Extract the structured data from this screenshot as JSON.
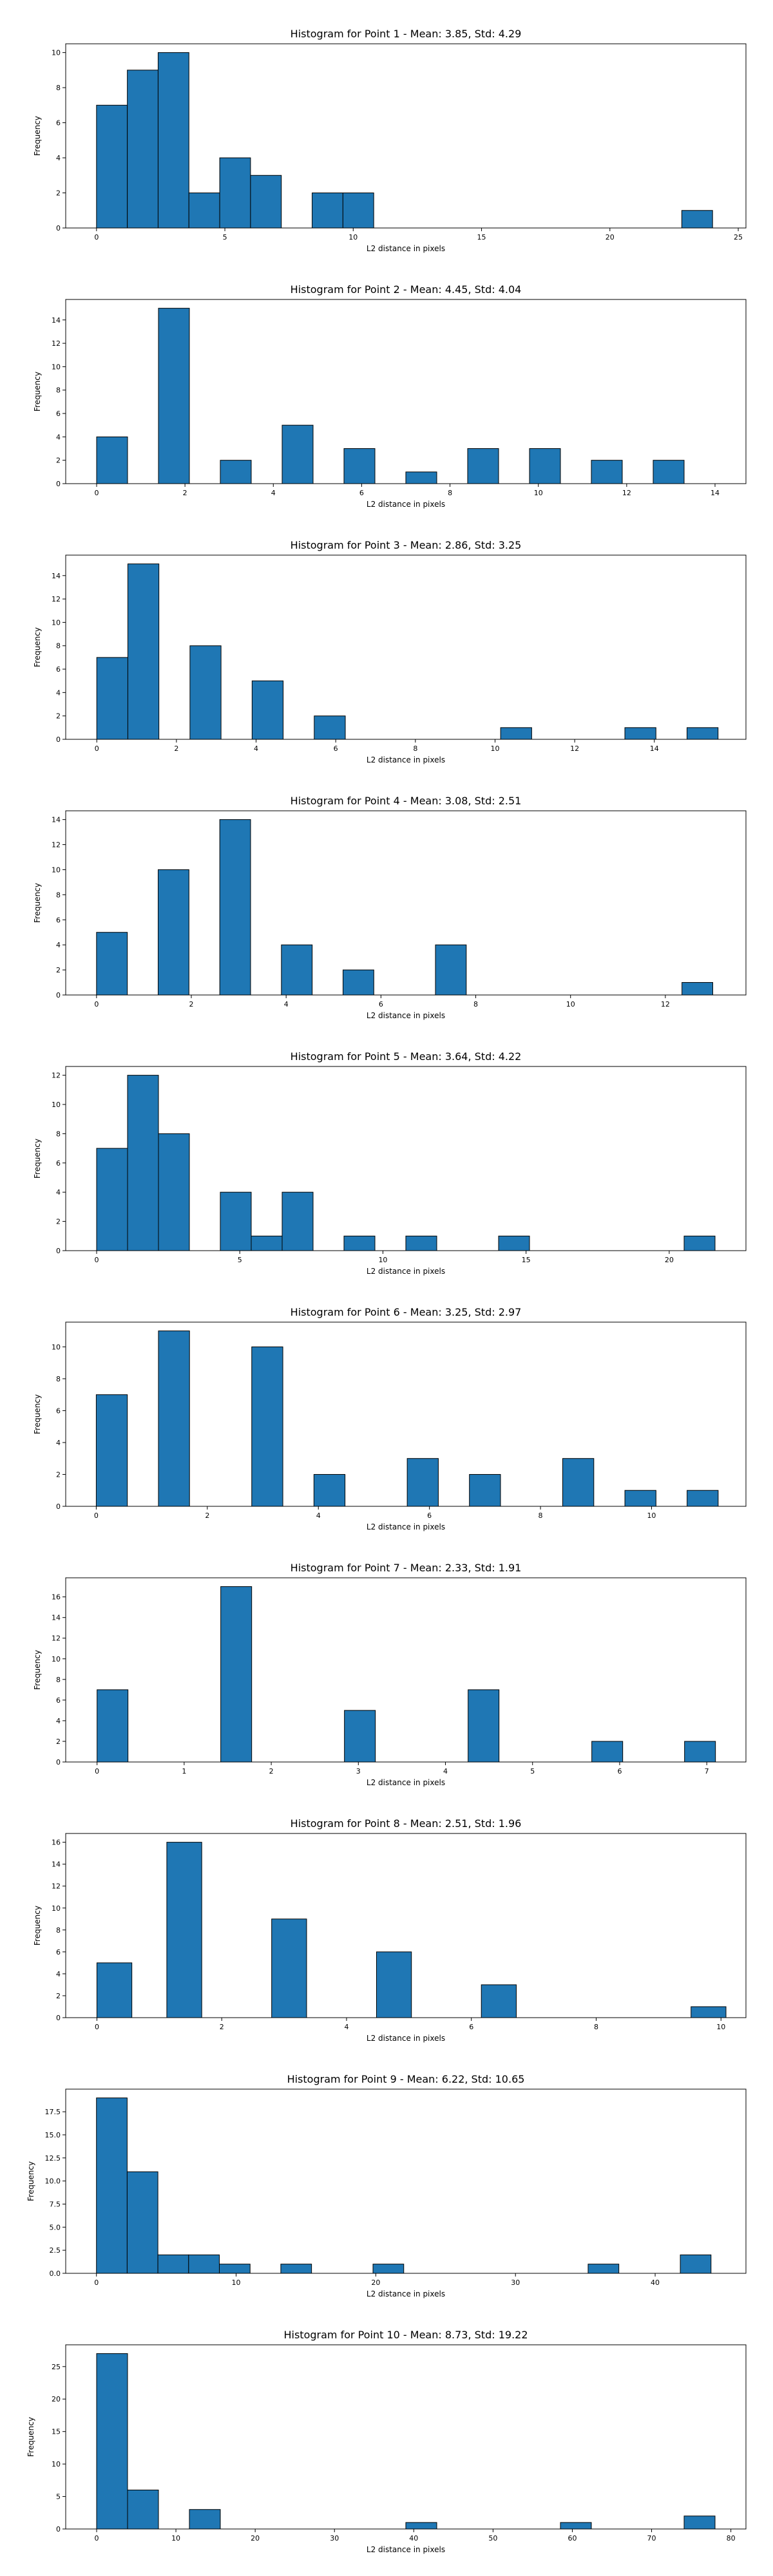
{
  "chart_data": [
    {
      "type": "bar",
      "title": "Histogram for Point 1 - Mean: 3.85, Std: 4.29",
      "xlabel": "L2 distance in pixels",
      "ylabel": "Frequency",
      "xlim": [
        -1.2,
        25.3
      ],
      "ylim": [
        0,
        10.5
      ],
      "xticks": [
        0,
        5,
        10,
        15,
        20,
        25
      ],
      "yticks": [
        0,
        2,
        4,
        6,
        8,
        10
      ],
      "bins": [
        {
          "x0": 0.0,
          "x1": 1.2,
          "value": 7
        },
        {
          "x0": 1.2,
          "x1": 2.4,
          "value": 9
        },
        {
          "x0": 2.4,
          "x1": 3.6,
          "value": 10
        },
        {
          "x0": 3.6,
          "x1": 4.8,
          "value": 2
        },
        {
          "x0": 4.8,
          "x1": 6.0,
          "value": 4
        },
        {
          "x0": 6.0,
          "x1": 7.2,
          "value": 3
        },
        {
          "x0": 8.4,
          "x1": 9.6,
          "value": 2
        },
        {
          "x0": 9.6,
          "x1": 10.8,
          "value": 2
        },
        {
          "x0": 22.8,
          "x1": 24.0,
          "value": 1
        }
      ]
    },
    {
      "type": "bar",
      "title": "Histogram for Point 2 - Mean: 4.45, Std: 4.04",
      "xlabel": "L2 distance in pixels",
      "ylabel": "Frequency",
      "xlim": [
        -0.7,
        14.7
      ],
      "ylim": [
        0,
        15.75
      ],
      "xticks": [
        0,
        2,
        4,
        6,
        8,
        10,
        12,
        14
      ],
      "yticks": [
        0,
        2,
        4,
        6,
        8,
        10,
        12,
        14
      ],
      "bins": [
        {
          "x0": 0.0,
          "x1": 0.7,
          "value": 4
        },
        {
          "x0": 1.4,
          "x1": 2.1,
          "value": 15
        },
        {
          "x0": 2.8,
          "x1": 3.5,
          "value": 2
        },
        {
          "x0": 4.2,
          "x1": 4.9,
          "value": 5
        },
        {
          "x0": 5.6,
          "x1": 6.3,
          "value": 3
        },
        {
          "x0": 7.0,
          "x1": 7.7,
          "value": 1
        },
        {
          "x0": 8.4,
          "x1": 9.1,
          "value": 3
        },
        {
          "x0": 9.8,
          "x1": 10.5,
          "value": 3
        },
        {
          "x0": 11.2,
          "x1": 11.9,
          "value": 2
        },
        {
          "x0": 12.6,
          "x1": 13.3,
          "value": 2
        }
      ]
    },
    {
      "type": "bar",
      "title": "Histogram for Point 3 - Mean: 2.86, Std: 3.25",
      "xlabel": "L2 distance in pixels",
      "ylabel": "Frequency",
      "xlim": [
        -0.78,
        16.3
      ],
      "ylim": [
        0,
        15.75
      ],
      "xticks": [
        0,
        2,
        4,
        6,
        8,
        10,
        12,
        14
      ],
      "yticks": [
        0,
        2,
        4,
        6,
        8,
        10,
        12,
        14
      ],
      "bins": [
        {
          "x0": 0.0,
          "x1": 0.78,
          "value": 7
        },
        {
          "x0": 0.78,
          "x1": 1.56,
          "value": 15
        },
        {
          "x0": 2.34,
          "x1": 3.12,
          "value": 8
        },
        {
          "x0": 3.9,
          "x1": 4.68,
          "value": 5
        },
        {
          "x0": 5.46,
          "x1": 6.24,
          "value": 2
        },
        {
          "x0": 10.14,
          "x1": 10.92,
          "value": 1
        },
        {
          "x0": 13.26,
          "x1": 14.04,
          "value": 1
        },
        {
          "x0": 14.82,
          "x1": 15.6,
          "value": 1
        }
      ]
    },
    {
      "type": "bar",
      "title": "Histogram for Point 4 - Mean: 3.08, Std: 2.51",
      "xlabel": "L2 distance in pixels",
      "ylabel": "Frequency",
      "xlim": [
        -0.65,
        13.7
      ],
      "ylim": [
        0,
        14.7
      ],
      "xticks": [
        0,
        2,
        4,
        6,
        8,
        10,
        12
      ],
      "yticks": [
        0,
        2,
        4,
        6,
        8,
        10,
        12,
        14
      ],
      "bins": [
        {
          "x0": 0.0,
          "x1": 0.65,
          "value": 5
        },
        {
          "x0": 1.3,
          "x1": 1.95,
          "value": 10
        },
        {
          "x0": 2.6,
          "x1": 3.25,
          "value": 14
        },
        {
          "x0": 3.9,
          "x1": 4.55,
          "value": 4
        },
        {
          "x0": 5.2,
          "x1": 5.85,
          "value": 2
        },
        {
          "x0": 7.15,
          "x1": 7.8,
          "value": 4
        },
        {
          "x0": 12.35,
          "x1": 13.0,
          "value": 1
        }
      ]
    },
    {
      "type": "bar",
      "title": "Histogram for Point 5 - Mean: 3.64, Std: 4.22",
      "xlabel": "L2 distance in pixels",
      "ylabel": "Frequency",
      "xlim": [
        -1.08,
        22.68
      ],
      "ylim": [
        0,
        12.6
      ],
      "xticks": [
        0,
        5,
        10,
        15,
        20
      ],
      "yticks": [
        0,
        2,
        4,
        6,
        8,
        10,
        12
      ],
      "bins": [
        {
          "x0": 0.0,
          "x1": 1.08,
          "value": 7
        },
        {
          "x0": 1.08,
          "x1": 2.16,
          "value": 12
        },
        {
          "x0": 2.16,
          "x1": 3.24,
          "value": 8
        },
        {
          "x0": 4.32,
          "x1": 5.4,
          "value": 4
        },
        {
          "x0": 5.4,
          "x1": 6.48,
          "value": 1
        },
        {
          "x0": 6.48,
          "x1": 7.56,
          "value": 4
        },
        {
          "x0": 8.64,
          "x1": 9.72,
          "value": 1
        },
        {
          "x0": 10.8,
          "x1": 11.88,
          "value": 1
        },
        {
          "x0": 14.04,
          "x1": 15.12,
          "value": 1
        },
        {
          "x0": 20.52,
          "x1": 21.6,
          "value": 1
        }
      ]
    },
    {
      "type": "bar",
      "title": "Histogram for Point 6 - Mean: 3.25, Std: 2.97",
      "xlabel": "L2 distance in pixels",
      "ylabel": "Frequency",
      "xlim": [
        -0.55,
        11.7
      ],
      "ylim": [
        0,
        11.55
      ],
      "xticks": [
        0,
        2,
        4,
        6,
        8,
        10
      ],
      "yticks": [
        0,
        2,
        4,
        6,
        8,
        10
      ],
      "bins": [
        {
          "x0": 0.0,
          "x1": 0.56,
          "value": 7
        },
        {
          "x0": 1.12,
          "x1": 1.68,
          "value": 11
        },
        {
          "x0": 2.8,
          "x1": 3.36,
          "value": 10
        },
        {
          "x0": 3.92,
          "x1": 4.48,
          "value": 2
        },
        {
          "x0": 5.6,
          "x1": 6.16,
          "value": 3
        },
        {
          "x0": 6.72,
          "x1": 7.28,
          "value": 2
        },
        {
          "x0": 8.4,
          "x1": 8.96,
          "value": 3
        },
        {
          "x0": 9.52,
          "x1": 10.08,
          "value": 1
        },
        {
          "x0": 10.64,
          "x1": 11.2,
          "value": 1
        }
      ]
    },
    {
      "type": "bar",
      "title": "Histogram for Point 7 - Mean: 2.33, Std: 1.91",
      "xlabel": "L2 distance in pixels",
      "ylabel": "Frequency",
      "xlim": [
        -0.36,
        7.45
      ],
      "ylim": [
        0,
        17.85
      ],
      "xticks": [
        0,
        1,
        2,
        3,
        4,
        5,
        6,
        7
      ],
      "yticks": [
        0,
        2,
        4,
        6,
        8,
        10,
        12,
        14,
        16
      ],
      "bins": [
        {
          "x0": 0.0,
          "x1": 0.355,
          "value": 7
        },
        {
          "x0": 1.42,
          "x1": 1.775,
          "value": 17
        },
        {
          "x0": 2.84,
          "x1": 3.195,
          "value": 5
        },
        {
          "x0": 4.26,
          "x1": 4.615,
          "value": 7
        },
        {
          "x0": 5.68,
          "x1": 6.035,
          "value": 2
        },
        {
          "x0": 6.745,
          "x1": 7.1,
          "value": 2
        }
      ]
    },
    {
      "type": "bar",
      "title": "Histogram for Point 8 - Mean: 2.51, Std: 1.96",
      "xlabel": "L2 distance in pixels",
      "ylabel": "Frequency",
      "xlim": [
        -0.5,
        10.4
      ],
      "ylim": [
        0,
        16.8
      ],
      "xticks": [
        0,
        2,
        4,
        6,
        8,
        10
      ],
      "yticks": [
        0,
        2,
        4,
        6,
        8,
        10,
        12,
        14,
        16
      ],
      "bins": [
        {
          "x0": 0.0,
          "x1": 0.56,
          "value": 5
        },
        {
          "x0": 1.12,
          "x1": 1.68,
          "value": 16
        },
        {
          "x0": 2.8,
          "x1": 3.36,
          "value": 9
        },
        {
          "x0": 4.48,
          "x1": 5.04,
          "value": 6
        },
        {
          "x0": 6.16,
          "x1": 6.72,
          "value": 3
        },
        {
          "x0": 9.52,
          "x1": 10.08,
          "value": 1
        }
      ]
    },
    {
      "type": "bar",
      "title": "Histogram for Point 9 - Mean: 6.22, Std: 10.65",
      "xlabel": "L2 distance in pixels",
      "ylabel": "Frequency",
      "xlim": [
        -2.2,
        46.5
      ],
      "ylim": [
        0,
        19.95
      ],
      "xticks": [
        0,
        10,
        20,
        30,
        40
      ],
      "yticks": [
        0.0,
        2.5,
        5.0,
        7.5,
        10.0,
        12.5,
        15.0,
        17.5
      ],
      "ytick_labels": [
        "0.0",
        "2.5",
        "5.0",
        "7.5",
        "10.0",
        "12.5",
        "15.0",
        "17.5"
      ],
      "bins": [
        {
          "x0": 0.0,
          "x1": 2.2,
          "value": 19
        },
        {
          "x0": 2.2,
          "x1": 4.4,
          "value": 11
        },
        {
          "x0": 4.4,
          "x1": 6.6,
          "value": 2
        },
        {
          "x0": 6.6,
          "x1": 8.8,
          "value": 2
        },
        {
          "x0": 8.8,
          "x1": 11.0,
          "value": 1
        },
        {
          "x0": 13.2,
          "x1": 15.4,
          "value": 1
        },
        {
          "x0": 19.8,
          "x1": 22.0,
          "value": 1
        },
        {
          "x0": 35.2,
          "x1": 37.4,
          "value": 1
        },
        {
          "x0": 41.8,
          "x1": 44.0,
          "value": 2
        }
      ]
    },
    {
      "type": "bar",
      "title": "Histogram for Point 10 - Mean: 8.73, Std: 19.22",
      "xlabel": "L2 distance in pixels",
      "ylabel": "Frequency",
      "xlim": [
        -3.9,
        81.9
      ],
      "ylim": [
        0,
        28.35
      ],
      "xticks": [
        0,
        10,
        20,
        30,
        40,
        50,
        60,
        70,
        80
      ],
      "yticks": [
        0,
        5,
        10,
        15,
        20,
        25
      ],
      "bins": [
        {
          "x0": 0.0,
          "x1": 3.9,
          "value": 27
        },
        {
          "x0": 3.9,
          "x1": 7.8,
          "value": 6
        },
        {
          "x0": 11.7,
          "x1": 15.6,
          "value": 3
        },
        {
          "x0": 39.0,
          "x1": 42.9,
          "value": 1
        },
        {
          "x0": 58.5,
          "x1": 62.4,
          "value": 1
        },
        {
          "x0": 74.1,
          "x1": 78.0,
          "value": 2
        }
      ]
    }
  ]
}
